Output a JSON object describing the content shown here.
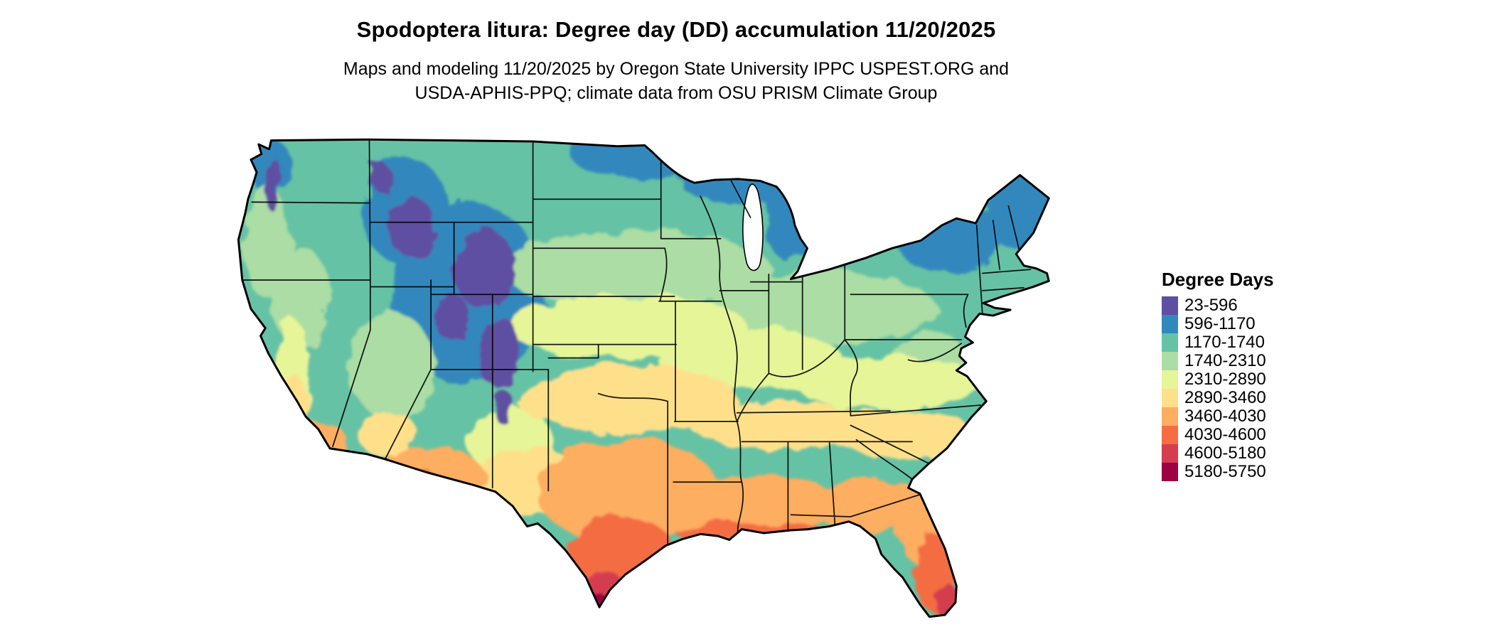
{
  "title": "Spodoptera litura: Degree day (DD) accumulation 11/20/2025",
  "subtitle_line1": "Maps and modeling 11/20/2025 by Oregon State University IPPC USPEST.ORG and",
  "subtitle_line2": "USDA-APHIS-PPQ; climate data from OSU PRISM Climate Group",
  "map": {
    "region": "Contiguous United States",
    "kind": "degree-day accumulation raster with state boundaries"
  },
  "legend": {
    "title": "Degree Days",
    "entries": [
      {
        "label": "23-596",
        "color": "#5e4fa2"
      },
      {
        "label": "596-1170",
        "color": "#3288bd"
      },
      {
        "label": "1170-1740",
        "color": "#66c2a5"
      },
      {
        "label": "1740-2310",
        "color": "#abdda4"
      },
      {
        "label": "2310-2890",
        "color": "#e6f598"
      },
      {
        "label": "2890-3460",
        "color": "#fee08b"
      },
      {
        "label": "3460-4030",
        "color": "#fdae61"
      },
      {
        "label": "4030-4600",
        "color": "#f46d43"
      },
      {
        "label": "4600-5180",
        "color": "#d53e4f"
      },
      {
        "label": "5180-5750",
        "color": "#9e0142"
      }
    ]
  }
}
